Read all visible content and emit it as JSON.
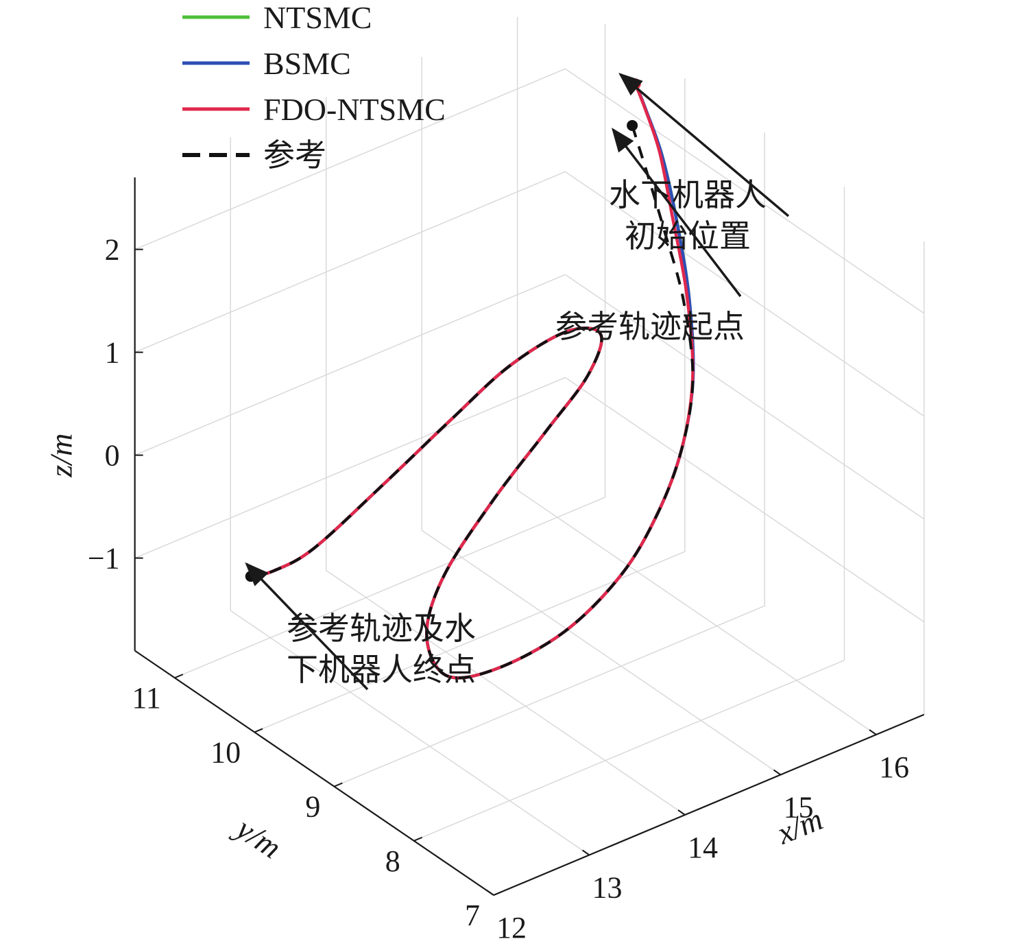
{
  "chart_data": {
    "type": "line",
    "projection": "3d",
    "title": "",
    "xlabel": "x/m",
    "ylabel": "y/m",
    "zlabel": "z/m",
    "xlim": [
      12,
      16.5
    ],
    "ylim": [
      7,
      11.5
    ],
    "zlim": [
      -1.9,
      2.7
    ],
    "xticks": [
      12,
      13,
      14,
      15,
      16
    ],
    "yticks": [
      7,
      8,
      9,
      10,
      11
    ],
    "zticks": [
      -1,
      0,
      1,
      2
    ],
    "xtick_labels": [
      "12",
      "13",
      "14",
      "15",
      "16"
    ],
    "ytick_labels": [
      "7",
      "8",
      "9",
      "10",
      "11"
    ],
    "ztick_labels": [
      "−1",
      "0",
      "1",
      "2"
    ],
    "grid": true,
    "legend_position": "top-left",
    "series": [
      {
        "name": "NTSMC",
        "color": "#4fbf3a",
        "style": "solid",
        "points": [
          [
            16.4,
            10.5,
            2.42
          ],
          [
            16.34,
            10.3,
            2.3
          ],
          [
            16.26,
            10.0,
            2.05
          ],
          [
            16.18,
            9.72,
            1.6
          ],
          [
            16.06,
            9.42,
            1.05
          ],
          [
            15.85,
            9.12,
            0.5
          ],
          [
            15.5,
            8.84,
            0.1
          ],
          [
            15.0,
            8.54,
            -0.17
          ],
          [
            14.4,
            8.28,
            -0.4
          ],
          [
            13.7,
            8.16,
            -0.62
          ],
          [
            13.1,
            8.3,
            -0.82
          ],
          [
            12.85,
            8.62,
            -0.95
          ],
          [
            12.95,
            8.98,
            -0.78
          ],
          [
            13.3,
            9.18,
            -0.45
          ],
          [
            13.9,
            9.28,
            0.0
          ],
          [
            14.5,
            9.34,
            0.4
          ],
          [
            15.0,
            9.42,
            0.7
          ],
          [
            15.33,
            9.65,
            0.85
          ],
          [
            15.27,
            10.0,
            0.72
          ],
          [
            14.9,
            10.28,
            0.38
          ],
          [
            14.4,
            10.4,
            0.0
          ],
          [
            13.7,
            10.44,
            -0.4
          ],
          [
            13.0,
            10.46,
            -0.75
          ],
          [
            12.6,
            10.48,
            -0.82
          ],
          [
            12.42,
            10.55,
            -0.84
          ]
        ]
      },
      {
        "name": "BSMC",
        "color": "#2d4fb5",
        "style": "solid",
        "points": [
          [
            16.42,
            10.52,
            2.4
          ],
          [
            16.36,
            10.32,
            2.28
          ],
          [
            16.28,
            10.02,
            2.02
          ],
          [
            16.2,
            9.74,
            1.56
          ],
          [
            16.08,
            9.44,
            1.01
          ],
          [
            15.86,
            9.13,
            0.48
          ],
          [
            15.5,
            8.84,
            0.1
          ],
          [
            15.0,
            8.54,
            -0.17
          ],
          [
            14.4,
            8.28,
            -0.4
          ],
          [
            13.7,
            8.16,
            -0.62
          ],
          [
            13.1,
            8.3,
            -0.82
          ],
          [
            12.85,
            8.62,
            -0.95
          ],
          [
            12.95,
            8.98,
            -0.78
          ],
          [
            13.3,
            9.18,
            -0.45
          ],
          [
            13.9,
            9.28,
            0.0
          ],
          [
            14.5,
            9.34,
            0.4
          ],
          [
            15.0,
            9.42,
            0.7
          ],
          [
            15.33,
            9.65,
            0.85
          ],
          [
            15.27,
            10.0,
            0.72
          ],
          [
            14.9,
            10.28,
            0.38
          ],
          [
            14.4,
            10.4,
            0.0
          ],
          [
            13.7,
            10.44,
            -0.4
          ],
          [
            13.0,
            10.46,
            -0.75
          ],
          [
            12.6,
            10.48,
            -0.82
          ],
          [
            12.42,
            10.55,
            -0.84
          ]
        ]
      },
      {
        "name": "FDO-NTSMC",
        "color": "#e0284c",
        "style": "solid",
        "points": [
          [
            16.4,
            10.5,
            2.42
          ],
          [
            16.32,
            10.28,
            2.32
          ],
          [
            16.22,
            9.98,
            2.1
          ],
          [
            16.12,
            9.7,
            1.66
          ],
          [
            16.02,
            9.4,
            1.1
          ],
          [
            15.84,
            9.11,
            0.52
          ],
          [
            15.5,
            8.84,
            0.1
          ],
          [
            15.0,
            8.54,
            -0.17
          ],
          [
            14.4,
            8.28,
            -0.4
          ],
          [
            13.7,
            8.16,
            -0.62
          ],
          [
            13.1,
            8.3,
            -0.82
          ],
          [
            12.85,
            8.62,
            -0.95
          ],
          [
            12.95,
            8.98,
            -0.78
          ],
          [
            13.3,
            9.18,
            -0.45
          ],
          [
            13.9,
            9.28,
            0.0
          ],
          [
            14.5,
            9.34,
            0.4
          ],
          [
            15.0,
            9.42,
            0.7
          ],
          [
            15.33,
            9.65,
            0.85
          ],
          [
            15.27,
            10.0,
            0.72
          ],
          [
            14.9,
            10.28,
            0.38
          ],
          [
            14.4,
            10.4,
            0.0
          ],
          [
            13.7,
            10.44,
            -0.4
          ],
          [
            13.0,
            10.46,
            -0.75
          ],
          [
            12.6,
            10.48,
            -0.82
          ],
          [
            12.42,
            10.55,
            -0.84
          ]
        ]
      },
      {
        "name": "参考",
        "color": "#111111",
        "style": "dashed",
        "points": [
          [
            16.2,
            10.3,
            2.2
          ],
          [
            16.1,
            10.0,
            1.95
          ],
          [
            16.05,
            9.72,
            1.55
          ],
          [
            16.0,
            9.42,
            1.05
          ],
          [
            15.85,
            9.12,
            0.5
          ],
          [
            15.5,
            8.84,
            0.1
          ],
          [
            15.0,
            8.54,
            -0.17
          ],
          [
            14.4,
            8.28,
            -0.4
          ],
          [
            13.7,
            8.16,
            -0.62
          ],
          [
            13.1,
            8.3,
            -0.82
          ],
          [
            12.85,
            8.62,
            -0.95
          ],
          [
            12.95,
            8.98,
            -0.78
          ],
          [
            13.3,
            9.18,
            -0.45
          ],
          [
            13.9,
            9.28,
            0.0
          ],
          [
            14.5,
            9.34,
            0.4
          ],
          [
            15.0,
            9.42,
            0.7
          ],
          [
            15.33,
            9.65,
            0.85
          ],
          [
            15.27,
            10.0,
            0.72
          ],
          [
            14.9,
            10.28,
            0.38
          ],
          [
            14.4,
            10.4,
            0.0
          ],
          [
            13.7,
            10.44,
            -0.4
          ],
          [
            13.0,
            10.46,
            -0.75
          ],
          [
            12.6,
            10.48,
            -0.82
          ],
          [
            12.42,
            10.55,
            -0.84
          ]
        ]
      }
    ],
    "markers": [
      {
        "name": "robot-start",
        "point": [
          16.4,
          10.5,
          2.42
        ],
        "color": "#e8283c"
      },
      {
        "name": "reference-start",
        "point": [
          16.2,
          10.3,
          2.2
        ],
        "color": "#111111"
      },
      {
        "name": "end-point",
        "point": [
          12.42,
          10.55,
          -0.84
        ],
        "color": "#111111"
      }
    ],
    "annotations": [
      {
        "lines": [
          "水下机器人",
          "初始位置"
        ],
        "target": [
          16.4,
          10.5,
          2.42
        ]
      },
      {
        "lines": [
          "参考轨迹起点"
        ],
        "target": [
          16.2,
          10.3,
          2.2
        ]
      },
      {
        "lines": [
          "参考轨迹及水",
          "下机器人终点"
        ],
        "target": [
          12.42,
          10.55,
          -0.84
        ]
      }
    ]
  }
}
